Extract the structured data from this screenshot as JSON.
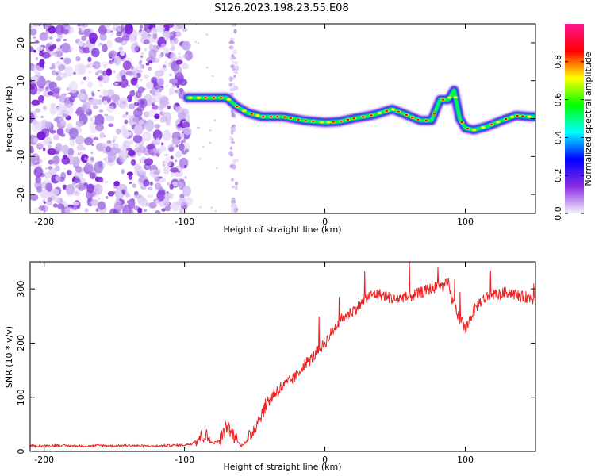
{
  "title": "S126.2023.198.23.55.E08",
  "colors": {
    "axis": "#000000",
    "snr_line": "#ee2222"
  },
  "chart_data": [
    {
      "type": "heatmap",
      "xlabel": "Height of straight line (km)",
      "ylabel": "Frequency (Hz)",
      "xlim": [
        -210,
        150
      ],
      "ylim": [
        -25,
        25
      ],
      "xticks": [
        -200,
        -100,
        0,
        100
      ],
      "xtick_labels": [
        "-200",
        "-100",
        "0",
        "100"
      ],
      "yticks": [
        -20,
        -10,
        0,
        10,
        20
      ],
      "ytick_labels": [
        "-20",
        "-10",
        "0",
        "10",
        "20"
      ],
      "grid": false,
      "noise_region_x": [
        -210,
        -97
      ],
      "doppler_trace": {
        "x": [
          -98,
          -90,
          -80,
          -70,
          -62,
          -55,
          -45,
          -30,
          -15,
          0,
          10,
          20,
          35,
          48,
          58,
          68,
          76,
          82,
          88,
          92,
          96,
          100,
          106,
          116,
          126,
          136,
          146,
          150
        ],
        "y": [
          5.5,
          5.5,
          5.5,
          5.5,
          3,
          1.5,
          0.5,
          0.5,
          -0.5,
          -1,
          -0.8,
          0,
          1,
          2.5,
          1,
          -0.5,
          -0.5,
          5,
          5,
          7.5,
          0,
          -2.5,
          -3,
          -2,
          -0.5,
          0.8,
          0.5,
          0.5
        ]
      },
      "colorbar": {
        "label": "Normalized spectral amplitude",
        "range": [
          0,
          1
        ],
        "ticks": [
          0.0,
          0.2,
          0.4,
          0.6,
          0.8
        ],
        "tick_labels": [
          "0.0",
          "0.2",
          "0.4",
          "0.6",
          "0.8"
        ],
        "colormap": [
          "#f4f0fb",
          "#8a2be2",
          "#0000ff",
          "#00ffff",
          "#00ff00",
          "#ffff00",
          "#ff0000",
          "#ff1493"
        ]
      }
    },
    {
      "type": "line",
      "xlabel": "Height of straight line (km)",
      "ylabel": "SNR (10 * v/v)",
      "xlim": [
        -210,
        150
      ],
      "ylim": [
        0,
        350
      ],
      "xticks": [
        -200,
        -100,
        0,
        100
      ],
      "xtick_labels": [
        "-200",
        "-100",
        "0",
        "100"
      ],
      "yticks": [
        0,
        100,
        200,
        300
      ],
      "ytick_labels": [
        "0",
        "100",
        "200",
        "300"
      ],
      "grid": false,
      "series": [
        {
          "x": [
            -210,
            -200,
            -190,
            -180,
            -170,
            -160,
            -150,
            -140,
            -130,
            -120,
            -110,
            -100,
            -95,
            -90,
            -85,
            -80,
            -75,
            -70,
            -65,
            -60,
            -55,
            -50,
            -45,
            -40,
            -35,
            -30,
            -25,
            -20,
            -15,
            -10,
            -5,
            0,
            5,
            10,
            15,
            20,
            25,
            30,
            35,
            40,
            45,
            50,
            55,
            60,
            65,
            70,
            75,
            80,
            85,
            88,
            90,
            95,
            100,
            105,
            110,
            115,
            120,
            125,
            130,
            135,
            140,
            145,
            150
          ],
          "y": [
            10,
            10,
            11,
            10,
            10,
            11,
            10,
            11,
            10,
            10,
            11,
            12,
            14,
            25,
            30,
            15,
            20,
            45,
            30,
            10,
            20,
            45,
            70,
            95,
            110,
            120,
            130,
            140,
            160,
            170,
            185,
            200,
            220,
            240,
            250,
            260,
            270,
            285,
            290,
            290,
            285,
            280,
            285,
            285,
            290,
            295,
            300,
            305,
            305,
            310,
            285,
            250,
            225,
            255,
            275,
            285,
            290,
            290,
            295,
            290,
            285,
            285,
            280
          ]
        }
      ]
    }
  ]
}
